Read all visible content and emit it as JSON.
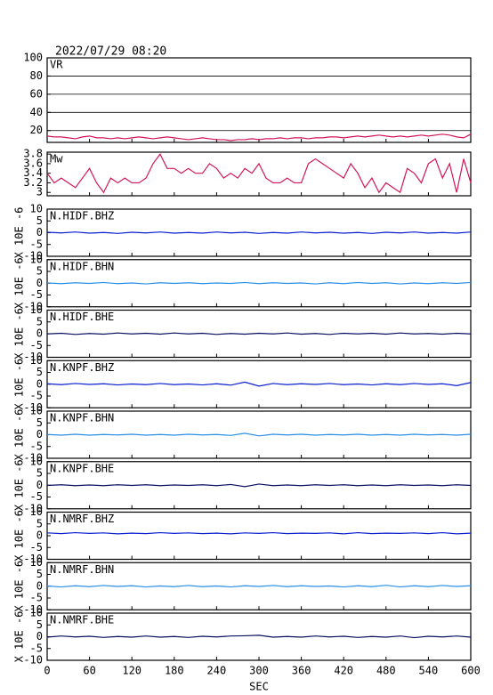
{
  "chart_data": [
    {
      "type": "line",
      "title": "2022/07/29 08:20",
      "name": "VR",
      "color": "#d4145a",
      "grid": true,
      "x": [
        0,
        10,
        20,
        30,
        40,
        50,
        60,
        70,
        80,
        90,
        100,
        110,
        120,
        130,
        140,
        150,
        160,
        170,
        180,
        190,
        200,
        210,
        220,
        230,
        240,
        250,
        260,
        270,
        280,
        290,
        300,
        310,
        320,
        330,
        340,
        350,
        360,
        370,
        380,
        390,
        400,
        410,
        420,
        430,
        440,
        450,
        460,
        470,
        480,
        490,
        500,
        510,
        520,
        530,
        540,
        550,
        560,
        570,
        580,
        590,
        600
      ],
      "values": [
        14,
        13,
        13,
        12,
        11,
        13,
        14,
        12,
        12,
        11,
        12,
        11,
        12,
        13,
        12,
        11,
        12,
        13,
        12,
        11,
        10,
        11,
        12,
        11,
        10,
        10,
        9,
        10,
        10,
        11,
        10,
        11,
        11,
        12,
        11,
        12,
        12,
        11,
        12,
        12,
        13,
        13,
        12,
        13,
        14,
        13,
        14,
        15,
        14,
        13,
        14,
        13,
        14,
        15,
        14,
        15,
        16,
        15,
        13,
        12,
        16
      ],
      "xlim": [
        0,
        600
      ],
      "xticks": [
        0,
        60,
        120,
        180,
        240,
        300,
        360,
        420,
        480,
        540,
        600
      ],
      "ylim": [
        7,
        100
      ],
      "yticks": [
        100,
        80,
        60,
        40,
        20
      ]
    },
    {
      "type": "line",
      "name": "Mw",
      "color": "#d4145a",
      "grid": false,
      "x": [
        0,
        10,
        20,
        30,
        40,
        50,
        60,
        70,
        80,
        90,
        100,
        110,
        120,
        130,
        140,
        150,
        160,
        170,
        180,
        190,
        200,
        210,
        220,
        230,
        240,
        250,
        260,
        270,
        280,
        290,
        300,
        310,
        320,
        330,
        340,
        350,
        360,
        370,
        380,
        390,
        400,
        410,
        420,
        430,
        440,
        450,
        460,
        470,
        480,
        490,
        500,
        510,
        520,
        530,
        540,
        550,
        560,
        570,
        580,
        590,
        600
      ],
      "values": [
        3.4,
        3.2,
        3.3,
        3.2,
        3.1,
        3.3,
        3.5,
        3.2,
        3.0,
        3.3,
        3.2,
        3.3,
        3.2,
        3.2,
        3.3,
        3.6,
        3.8,
        3.5,
        3.5,
        3.4,
        3.5,
        3.4,
        3.4,
        3.6,
        3.5,
        3.3,
        3.4,
        3.3,
        3.5,
        3.4,
        3.6,
        3.3,
        3.2,
        3.2,
        3.3,
        3.2,
        3.2,
        3.6,
        3.7,
        3.6,
        3.5,
        3.4,
        3.3,
        3.6,
        3.4,
        3.1,
        3.3,
        3.0,
        3.2,
        3.1,
        3.0,
        3.5,
        3.4,
        3.2,
        3.6,
        3.7,
        3.3,
        3.6,
        3.0,
        3.7,
        3.2
      ],
      "xlim": [
        0,
        600
      ],
      "xticks": [
        0,
        60,
        120,
        180,
        240,
        300,
        360,
        420,
        480,
        540,
        600
      ],
      "ylim": [
        2.93,
        3.84
      ],
      "yticks": [
        3.8,
        3.6,
        3.4,
        3.2,
        3.0
      ]
    },
    {
      "type": "line",
      "name": "N.HIDF.BHZ",
      "ylabel": "X 10E -6",
      "color": "#0a1fd0",
      "x": [
        0,
        20,
        40,
        60,
        80,
        100,
        120,
        140,
        160,
        180,
        200,
        220,
        240,
        260,
        280,
        300,
        320,
        340,
        360,
        380,
        400,
        420,
        440,
        460,
        480,
        500,
        520,
        540,
        560,
        580,
        600
      ],
      "values": [
        0.2,
        -0.1,
        0.3,
        -0.2,
        0.1,
        -0.3,
        0.2,
        -0.1,
        0.3,
        -0.2,
        0.1,
        -0.2,
        0.3,
        -0.1,
        0.2,
        -0.3,
        0.1,
        -0.2,
        0.3,
        -0.1,
        0.2,
        -0.2,
        0.1,
        -0.3,
        0.2,
        -0.1,
        0.3,
        -0.2,
        0.1,
        -0.2,
        0.3
      ],
      "xlim": [
        0,
        600
      ],
      "xticks": [
        0,
        60,
        120,
        180,
        240,
        300,
        360,
        420,
        480,
        540,
        600
      ],
      "ylim": [
        -10,
        10
      ],
      "yticks": [
        10,
        5,
        0,
        -5,
        -10
      ]
    },
    {
      "type": "line",
      "name": "N.HIDF.BHN",
      "ylabel": "X 10E -6",
      "color": "#2a8fe6",
      "x": [
        0,
        20,
        40,
        60,
        80,
        100,
        120,
        140,
        160,
        180,
        200,
        220,
        240,
        260,
        280,
        300,
        320,
        340,
        360,
        380,
        400,
        420,
        440,
        460,
        480,
        500,
        520,
        540,
        560,
        580,
        600
      ],
      "values": [
        0.1,
        -0.2,
        0.2,
        -0.1,
        0.3,
        -0.2,
        0.1,
        -0.3,
        0.2,
        -0.1,
        0.2,
        -0.2,
        0.1,
        -0.1,
        0.3,
        -0.2,
        0.2,
        -0.1,
        0.1,
        -0.3,
        0.2,
        -0.2,
        0.3,
        -0.1,
        0.2,
        -0.3,
        0.1,
        -0.2,
        0.2,
        -0.1,
        0.3
      ],
      "xlim": [
        0,
        600
      ],
      "xticks": [
        0,
        60,
        120,
        180,
        240,
        300,
        360,
        420,
        480,
        540,
        600
      ],
      "ylim": [
        -10,
        10
      ],
      "yticks": [
        10,
        5,
        0,
        -5,
        -10
      ]
    },
    {
      "type": "line",
      "name": "N.HIDF.BHE",
      "ylabel": "X 10E -6",
      "color": "#0b1060",
      "x": [
        0,
        20,
        40,
        60,
        80,
        100,
        120,
        140,
        160,
        180,
        200,
        220,
        240,
        260,
        280,
        300,
        320,
        340,
        360,
        380,
        400,
        420,
        440,
        460,
        480,
        500,
        520,
        540,
        560,
        580,
        600
      ],
      "values": [
        -0.1,
        0.2,
        -0.3,
        0.1,
        -0.2,
        0.3,
        -0.1,
        0.2,
        -0.2,
        0.3,
        -0.1,
        0.2,
        -0.3,
        0.1,
        -0.2,
        0.2,
        -0.1,
        0.3,
        -0.2,
        0.1,
        -0.3,
        0.2,
        -0.1,
        0.2,
        -0.2,
        0.3,
        -0.1,
        0.1,
        -0.2,
        0.2,
        -0.1
      ],
      "xlim": [
        0,
        600
      ],
      "xticks": [
        0,
        60,
        120,
        180,
        240,
        300,
        360,
        420,
        480,
        540,
        600
      ],
      "ylim": [
        -10,
        10
      ],
      "yticks": [
        10,
        5,
        0,
        -5,
        -10
      ]
    },
    {
      "type": "line",
      "name": "N.KNPF.BHZ",
      "ylabel": "X 10E -6",
      "color": "#0a1fd0",
      "x": [
        0,
        20,
        40,
        60,
        80,
        100,
        120,
        140,
        160,
        180,
        200,
        220,
        240,
        260,
        280,
        300,
        320,
        340,
        360,
        380,
        400,
        420,
        440,
        460,
        480,
        500,
        520,
        540,
        560,
        580,
        600
      ],
      "values": [
        0.2,
        -0.2,
        0.3,
        -0.1,
        0.2,
        -0.3,
        0.1,
        -0.2,
        0.3,
        -0.2,
        0.1,
        -0.3,
        0.2,
        -0.4,
        0.9,
        -0.8,
        0.3,
        -0.2,
        0.2,
        -0.1,
        0.3,
        -0.2,
        0.1,
        -0.3,
        0.2,
        -0.2,
        0.3,
        -0.1,
        0.2,
        -0.6,
        0.7
      ],
      "xlim": [
        0,
        600
      ],
      "xticks": [
        0,
        60,
        120,
        180,
        240,
        300,
        360,
        420,
        480,
        540,
        600
      ],
      "ylim": [
        -10,
        10
      ],
      "yticks": [
        10,
        5,
        0,
        -5,
        -10
      ]
    },
    {
      "type": "line",
      "name": "N.KNPF.BHN",
      "ylabel": "X 10E -6",
      "color": "#2a8fe6",
      "x": [
        0,
        20,
        40,
        60,
        80,
        100,
        120,
        140,
        160,
        180,
        200,
        220,
        240,
        260,
        280,
        300,
        320,
        340,
        360,
        380,
        400,
        420,
        440,
        460,
        480,
        500,
        520,
        540,
        560,
        580,
        600
      ],
      "values": [
        0.1,
        -0.2,
        0.2,
        -0.2,
        0.1,
        -0.1,
        0.2,
        -0.2,
        0.1,
        -0.2,
        0.2,
        -0.1,
        0.1,
        -0.3,
        0.6,
        -0.5,
        0.2,
        -0.1,
        0.2,
        -0.2,
        0.1,
        -0.1,
        0.2,
        -0.2,
        0.1,
        -0.2,
        0.2,
        -0.1,
        0.1,
        -0.2,
        0.2
      ],
      "xlim": [
        0,
        600
      ],
      "xticks": [
        0,
        60,
        120,
        180,
        240,
        300,
        360,
        420,
        480,
        540,
        600
      ],
      "ylim": [
        -10,
        10
      ],
      "yticks": [
        10,
        5,
        0,
        -5,
        -10
      ]
    },
    {
      "type": "line",
      "name": "N.KNPF.BHE",
      "ylabel": "X 10E -6",
      "color": "#0b1060",
      "x": [
        0,
        20,
        40,
        60,
        80,
        100,
        120,
        140,
        160,
        180,
        200,
        220,
        240,
        260,
        280,
        300,
        320,
        340,
        360,
        380,
        400,
        420,
        440,
        460,
        480,
        500,
        520,
        540,
        560,
        580,
        600
      ],
      "values": [
        -0.1,
        0.2,
        -0.2,
        0.1,
        -0.2,
        0.2,
        -0.1,
        0.2,
        -0.2,
        0.1,
        -0.1,
        0.2,
        -0.2,
        0.3,
        -0.6,
        0.5,
        -0.2,
        0.1,
        -0.2,
        0.2,
        -0.1,
        0.2,
        -0.2,
        0.1,
        -0.2,
        0.2,
        -0.1,
        0.1,
        -0.2,
        0.2,
        -0.1
      ],
      "xlim": [
        0,
        600
      ],
      "xticks": [
        0,
        60,
        120,
        180,
        240,
        300,
        360,
        420,
        480,
        540,
        600
      ],
      "ylim": [
        -10,
        10
      ],
      "yticks": [
        10,
        5,
        0,
        -5,
        -10
      ]
    },
    {
      "type": "line",
      "name": "N.NMRF.BHZ",
      "ylabel": "X 10E -6",
      "color": "#0a1fd0",
      "x": [
        0,
        20,
        40,
        60,
        80,
        100,
        120,
        140,
        160,
        180,
        200,
        220,
        240,
        260,
        280,
        300,
        320,
        340,
        360,
        380,
        400,
        420,
        440,
        460,
        480,
        500,
        520,
        540,
        560,
        580,
        600
      ],
      "values": [
        1.2,
        0.9,
        1.3,
        1.0,
        1.2,
        0.8,
        1.1,
        0.9,
        1.3,
        1.0,
        1.2,
        0.9,
        1.1,
        0.8,
        1.2,
        1.0,
        1.3,
        0.9,
        1.1,
        1.0,
        1.2,
        0.8,
        1.3,
        0.9,
        1.1,
        1.0,
        1.2,
        0.9,
        1.3,
        0.8,
        1.1
      ],
      "xlim": [
        0,
        600
      ],
      "xticks": [
        0,
        60,
        120,
        180,
        240,
        300,
        360,
        420,
        480,
        540,
        600
      ],
      "ylim": [
        -10,
        10
      ],
      "yticks": [
        10,
        5,
        0,
        -5,
        -10
      ]
    },
    {
      "type": "line",
      "name": "N.NMRF.BHN",
      "ylabel": "X 10E -6",
      "color": "#2a8fe6",
      "x": [
        0,
        20,
        40,
        60,
        80,
        100,
        120,
        140,
        160,
        180,
        200,
        220,
        240,
        260,
        280,
        300,
        320,
        340,
        360,
        380,
        400,
        420,
        440,
        460,
        480,
        500,
        520,
        540,
        560,
        580,
        600
      ],
      "values": [
        0.1,
        -0.3,
        0.2,
        -0.2,
        0.3,
        -0.1,
        0.2,
        -0.3,
        0.1,
        -0.2,
        0.3,
        -0.2,
        0.1,
        -0.3,
        0.2,
        -0.1,
        0.3,
        -0.2,
        0.2,
        -0.1,
        0.1,
        -0.3,
        0.2,
        -0.2,
        0.4,
        -0.3,
        0.2,
        -0.2,
        0.3,
        -0.1,
        0.2
      ],
      "xlim": [
        0,
        600
      ],
      "xticks": [
        0,
        60,
        120,
        180,
        240,
        300,
        360,
        420,
        480,
        540,
        600
      ],
      "ylim": [
        -10,
        10
      ],
      "yticks": [
        10,
        5,
        0,
        -5,
        -10
      ]
    },
    {
      "type": "line",
      "name": "N.NMRF.BHE",
      "ylabel": "X 10E -6",
      "color": "#0b1060",
      "xlabel": "SEC",
      "x": [
        0,
        20,
        40,
        60,
        80,
        100,
        120,
        140,
        160,
        180,
        200,
        220,
        240,
        260,
        280,
        300,
        320,
        340,
        360,
        380,
        400,
        420,
        440,
        460,
        480,
        500,
        520,
        540,
        560,
        580,
        600
      ],
      "values": [
        -0.2,
        0.3,
        -0.1,
        0.2,
        -0.3,
        0.1,
        -0.2,
        0.3,
        -0.2,
        0.1,
        -0.3,
        0.2,
        -0.1,
        0.3,
        0.4,
        0.6,
        -0.2,
        0.1,
        -0.2,
        0.3,
        -0.1,
        0.2,
        -0.3,
        0.1,
        -0.2,
        0.3,
        -0.4,
        0.2,
        -0.1,
        0.3,
        -0.2
      ],
      "xlim": [
        0,
        600
      ],
      "xticks": [
        0,
        60,
        120,
        180,
        240,
        300,
        360,
        420,
        480,
        540,
        600
      ],
      "ylim": [
        -10,
        10
      ],
      "yticks": [
        10,
        5,
        0,
        -5,
        -10
      ]
    }
  ]
}
